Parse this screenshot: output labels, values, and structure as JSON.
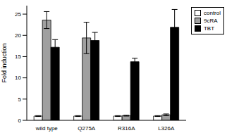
{
  "chart_data": {
    "type": "bar",
    "categories": [
      "wild type",
      "Q275A",
      "R316A",
      "L326A"
    ],
    "y_label": "Fold induction",
    "ylim": [
      0,
      27
    ],
    "yticks": [
      0,
      5,
      10,
      15,
      20,
      25
    ],
    "legend": "upper right",
    "series": [
      {
        "name": "control",
        "color": "#ffffff",
        "values": [
          1,
          1,
          1,
          1
        ],
        "errors": [
          0.1,
          0.1,
          0.1,
          0.1
        ]
      },
      {
        "name": "9cRA",
        "color": "#a0a0a0",
        "values": [
          23.6,
          19.4,
          1.1,
          1.3
        ],
        "errors": [
          2.0,
          3.7,
          0.1,
          0.2
        ]
      },
      {
        "name": "TBT",
        "color": "#000000",
        "values": [
          17.2,
          18.8,
          13.8,
          21.9
        ],
        "errors": [
          1.8,
          1.9,
          0.8,
          4.2
        ]
      }
    ]
  }
}
